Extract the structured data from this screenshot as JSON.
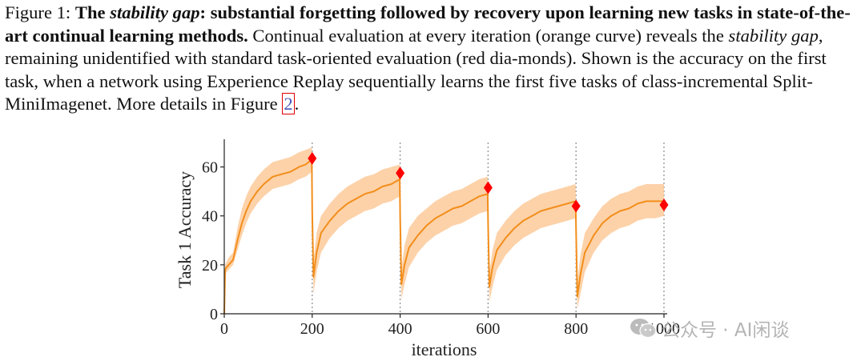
{
  "caption": {
    "label": "Figure 1:",
    "bold_1": "The",
    "bold_italic": "stability gap",
    "bold_2": ": substantial forgetting followed by recovery upon learning new tasks in state-of-the-art continual learning methods.",
    "text_1": " Continual evaluation at every iteration (orange curve) reveals the ",
    "italic": "stability gap",
    "text_2": ", remaining unidentified with standard task-oriented evaluation (red dia-monds). Shown is the accuracy on the first task, when a network using Experience Replay sequentially learns the first five tasks of class-incremental Split-MiniImagenet. More details in Figure ",
    "figure_ref": "2",
    "text_end": "."
  },
  "chart_data": {
    "type": "line",
    "xlabel": "iterations",
    "ylabel": "Task 1 Accuracy",
    "xlim": [
      0,
      1000
    ],
    "ylim": [
      0,
      70
    ],
    "x_ticks": [
      "0",
      "200",
      "400",
      "600",
      "800",
      "1000"
    ],
    "y_ticks": [
      "0",
      "20",
      "40",
      "60"
    ],
    "task_boundaries": [
      200,
      400,
      600,
      800,
      1000
    ],
    "series": [
      {
        "color": "#f28e1b",
        "band_color": "#fcc38c",
        "x": [
          0,
          2,
          5,
          10,
          20,
          30,
          40,
          50,
          60,
          75,
          90,
          110,
          130,
          150,
          170,
          185,
          199,
          200,
          203,
          210,
          220,
          240,
          260,
          280,
          300,
          320,
          340,
          360,
          380,
          399,
          400,
          403,
          410,
          420,
          440,
          460,
          480,
          500,
          520,
          540,
          560,
          580,
          599,
          600,
          603,
          610,
          620,
          640,
          660,
          680,
          700,
          720,
          740,
          760,
          780,
          799,
          800,
          803,
          810,
          820,
          840,
          860,
          880,
          900,
          920,
          940,
          960,
          980,
          1000
        ],
        "values": [
          0,
          18,
          19,
          20,
          22,
          30,
          37,
          42,
          46,
          50,
          53,
          56,
          57,
          58,
          60,
          61,
          63,
          42,
          15,
          25,
          33,
          38,
          42,
          45,
          47,
          49,
          50,
          52,
          53,
          55,
          40,
          12,
          20,
          27,
          32,
          36,
          39,
          41,
          43,
          44,
          46,
          48,
          49,
          37,
          11,
          19,
          26,
          31,
          35,
          38,
          40,
          42,
          43,
          44,
          45,
          46,
          35,
          7,
          16,
          25,
          32,
          37,
          40,
          42,
          43,
          45,
          46,
          46,
          46
        ],
        "band_lower": [
          0,
          16,
          17,
          18,
          20,
          26,
          32,
          37,
          41,
          45,
          48,
          51,
          52,
          53,
          55,
          56,
          58,
          37,
          8,
          17,
          25,
          31,
          35,
          38,
          40,
          42,
          43,
          45,
          46,
          48,
          34,
          6,
          12,
          19,
          25,
          29,
          32,
          34,
          36,
          37,
          39,
          41,
          42,
          30,
          5,
          11,
          18,
          24,
          28,
          31,
          33,
          35,
          36,
          37,
          38,
          39,
          28,
          2,
          8,
          17,
          25,
          30,
          33,
          35,
          36,
          38,
          39,
          39,
          40
        ],
        "band_upper": [
          0,
          20,
          21,
          23,
          25,
          35,
          43,
          48,
          52,
          56,
          59,
          62,
          63,
          64,
          66,
          67,
          68,
          48,
          22,
          33,
          40,
          45,
          49,
          52,
          54,
          56,
          57,
          59,
          60,
          61,
          47,
          18,
          28,
          35,
          40,
          43,
          46,
          48,
          50,
          51,
          53,
          55,
          56,
          44,
          17,
          26,
          33,
          38,
          42,
          45,
          47,
          49,
          50,
          51,
          52,
          53,
          42,
          13,
          24,
          33,
          39,
          44,
          47,
          49,
          50,
          52,
          53,
          53,
          53
        ]
      },
      {
        "type": "scatter",
        "marker": "diamond",
        "color": "#ff0000",
        "x": [
          200,
          400,
          600,
          800,
          1000
        ],
        "values": [
          63.5,
          57.5,
          51.5,
          44,
          44.5
        ]
      }
    ]
  },
  "watermark": {
    "icon": "wechat-icon",
    "text": "公众号 · AI闲谈"
  }
}
